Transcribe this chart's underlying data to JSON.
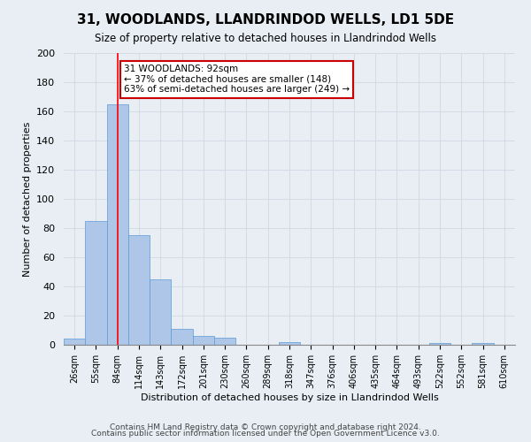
{
  "title": "31, WOODLANDS, LLANDRINDOD WELLS, LD1 5DE",
  "subtitle": "Size of property relative to detached houses in Llandrindod Wells",
  "xlabel": "Distribution of detached houses by size in Llandrindod Wells",
  "ylabel": "Number of detached properties",
  "bin_labels": [
    "26sqm",
    "55sqm",
    "84sqm",
    "114sqm",
    "143sqm",
    "172sqm",
    "201sqm",
    "230sqm",
    "260sqm",
    "289sqm",
    "318sqm",
    "347sqm",
    "376sqm",
    "406sqm",
    "435sqm",
    "464sqm",
    "493sqm",
    "522sqm",
    "552sqm",
    "581sqm",
    "610sqm"
  ],
  "bar_heights": [
    4,
    85,
    165,
    75,
    45,
    11,
    6,
    5,
    0,
    0,
    2,
    0,
    0,
    0,
    0,
    0,
    0,
    1,
    0,
    1,
    0
  ],
  "bar_color": "#aec6e8",
  "bar_edge_color": "#5b9bd5",
  "grid_color": "#d0d8e4",
  "background_color": "#e8eef4",
  "red_line_x": 2.0,
  "annotation_line1": "31 WOODLANDS: 92sqm",
  "annotation_line2": "← 37% of detached houses are smaller (148)",
  "annotation_line3": "63% of semi-detached houses are larger (249) →",
  "annotation_box_color": "#ffffff",
  "annotation_box_edge": "#cc0000",
  "ylim": [
    0,
    200
  ],
  "yticks": [
    0,
    20,
    40,
    60,
    80,
    100,
    120,
    140,
    160,
    180,
    200
  ],
  "footer_line1": "Contains HM Land Registry data © Crown copyright and database right 2024.",
  "footer_line2": "Contains public sector information licensed under the Open Government Licence v3.0."
}
